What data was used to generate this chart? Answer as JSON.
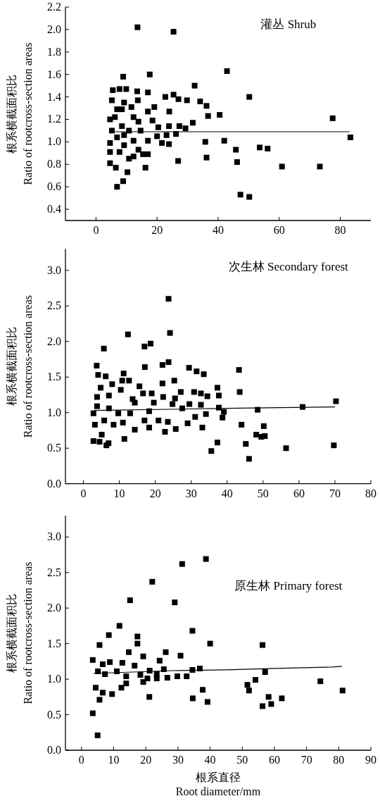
{
  "chart_data": [
    {
      "type": "scatter",
      "title": "灌丛 Shrub",
      "ylabel": "根系横截面积比 Ratio of rootcross-section areas",
      "xlim": [
        -10,
        90
      ],
      "ylim": [
        0.3,
        2.2
      ],
      "xticks": [
        0,
        20,
        40,
        60,
        80
      ],
      "yticks": [
        0.4,
        0.6,
        0.8,
        {
          "value": 1,
          "label": "1.0"
        },
        1.2,
        1.4,
        1.6,
        1.8,
        {
          "value": 2,
          "label": "2.0"
        },
        2.2
      ],
      "marker": "square",
      "series": [
        {
          "color": "#000000",
          "x": [
            13.6,
            25.4,
            8.9,
            17.6,
            42.9,
            32.3,
            50.2,
            77.5,
            83.3,
            5.5,
            7.7,
            9.9,
            13.5,
            17,
            22.7,
            25.4,
            27,
            29.8,
            34.1,
            36.2,
            36.7,
            40.5,
            31.7,
            24,
            19.1,
            13.7,
            11.6,
            5.2,
            4.6,
            6.2,
            8.5,
            17,
            18.5,
            20.4,
            23.9,
            27.3,
            29.3,
            26.2,
            23.1,
            20,
            17,
            21.6,
            23.9,
            35.8,
            42,
            45.8,
            53.6,
            56.2,
            36.2,
            46.2,
            60.9,
            73.3,
            47.3,
            50.2,
            26.9,
            16.2,
            10.3,
            8.9,
            6.9,
            4.6,
            6.5,
            4.6,
            4.6,
            5.2,
            6.9,
            9.2,
            10.8,
            12.3,
            15.4,
            17,
            13.9,
            12.3,
            10.8,
            8.5,
            9.2,
            6.9,
            12.3,
            14.6,
            13.9,
            7.7,
            9.2
          ],
          "values": [
            2.02,
            1.98,
            1.58,
            1.6,
            1.63,
            1.5,
            1.4,
            1.21,
            1.04,
            1.46,
            1.47,
            1.47,
            1.45,
            1.44,
            1.4,
            1.42,
            1.38,
            1.37,
            1.36,
            1.32,
            1.23,
            1.24,
            1.17,
            1.27,
            1.31,
            1.37,
            1.31,
            1.37,
            1.2,
            1.22,
            1.29,
            1.27,
            1.19,
            1.13,
            1.14,
            1.14,
            1.12,
            1.07,
            1.06,
            1.05,
            1.01,
            0.99,
            0.98,
            1.0,
            1.01,
            0.93,
            0.95,
            0.94,
            0.86,
            0.82,
            0.78,
            0.78,
            0.53,
            0.51,
            0.83,
            0.77,
            0.73,
            0.65,
            0.6,
            0.81,
            0.77,
            0.91,
            0.99,
            1.1,
            1.04,
            0.97,
            0.85,
            0.87,
            0.89,
            0.89,
            0.93,
            1.01,
            1.1,
            1.14,
            1.35,
            1.29,
            1.22,
            1.1,
            1.18,
            0.91,
            1.06
          ]
        },
        {
          "type": "line",
          "marker": "none",
          "color": "#000000",
          "x": [
            5,
            83
          ],
          "values": [
            1.09,
            1.09
          ]
        }
      ]
    },
    {
      "type": "scatter",
      "title": "次生林 Secondary forest",
      "ylabel": "根系横截面积比 Ratio of rootcross-section areas",
      "xlim": [
        -5,
        80
      ],
      "ylim": [
        0,
        3.3
      ],
      "xticks": [
        0,
        10,
        20,
        30,
        40,
        50,
        60,
        70,
        80
      ],
      "yticks": [
        {
          "value": 0,
          "label": "0.0"
        },
        0.5,
        {
          "value": 1,
          "label": "1.0"
        },
        1.5,
        {
          "value": 2,
          "label": "2.0"
        },
        2.5,
        {
          "value": 3,
          "label": "3.0"
        }
      ],
      "marker": "square",
      "series": [
        {
          "color": "#000000",
          "x": [
            23.7,
            24.1,
            12.4,
            17.0,
            18.7,
            5.7,
            3.7,
            17.1,
            22.0,
            23.7,
            29.4,
            31.5,
            33.5,
            43.3,
            4.1,
            6.2,
            11.2,
            12.7,
            10.8,
            8,
            22,
            25.3,
            15.6,
            4.8,
            10.4,
            37.3,
            43.5,
            30.8,
            32.7,
            34.5,
            37.7,
            27.1,
            25.5,
            22.2,
            19,
            16.6,
            3.8,
            7.1,
            13.7,
            14.3,
            19.6,
            29.5,
            32.7,
            37.7,
            27.5,
            24.8,
            48.5,
            61,
            70.3,
            39.1,
            34.1,
            31.1,
            38.7,
            29,
            33.1,
            25.7,
            22.7,
            20.9,
            23.5,
            18.3,
            14.3,
            11.4,
            7,
            6.4,
            2.8,
            4.5,
            5.1,
            3.2,
            2.8,
            3.8,
            5.8,
            8.4,
            9.7,
            7.1,
            11.0,
            13,
            17,
            18.3,
            44,
            50.2,
            48.1,
            49.5,
            50.5,
            37.3,
            45.2,
            35.6,
            56.4,
            69.7,
            46.1
          ],
          "values": [
            2.6,
            2.12,
            2.1,
            1.93,
            1.97,
            1.9,
            1.66,
            1.64,
            1.67,
            1.71,
            1.63,
            1.58,
            1.54,
            1.6,
            1.53,
            1.51,
            1.55,
            1.45,
            1.45,
            1.4,
            1.41,
            1.45,
            1.37,
            1.35,
            1.32,
            1.35,
            1.29,
            1.29,
            1.27,
            1.23,
            1.24,
            1.29,
            1.2,
            1.22,
            1.27,
            1.27,
            1.22,
            1.24,
            1.19,
            1.14,
            1.14,
            1.12,
            1.11,
            1.07,
            1.06,
            1.12,
            1.04,
            1.08,
            1.16,
            1.01,
            0.98,
            0.94,
            0.93,
            0.85,
            0.79,
            0.77,
            0.73,
            0.89,
            0.87,
            0.79,
            0.76,
            0.63,
            0.57,
            0.54,
            0.6,
            0.59,
            0.69,
            0.83,
            0.99,
            1.09,
            0.89,
            0.83,
            0.99,
            1.06,
            0.86,
            0.99,
            0.89,
            1.02,
            0.83,
            0.81,
            0.69,
            0.66,
            0.67,
            0.58,
            0.56,
            0.46,
            0.5,
            0.54,
            0.35
          ]
        },
        {
          "type": "line",
          "marker": "none",
          "color": "#000000",
          "x": [
            3,
            40,
            70
          ],
          "values": [
            1.03,
            1.06,
            1.08
          ]
        }
      ]
    },
    {
      "type": "scatter",
      "title": "原生林 Primary forest",
      "ylabel": "根系横截面积比 Ratio of rootcross-section areas",
      "xlabel": "根系直径 Root diameter/mm",
      "xlim": [
        -5,
        90
      ],
      "ylim": [
        0,
        3.3
      ],
      "xticks": [
        0,
        10,
        20,
        30,
        40,
        50,
        60,
        70,
        80,
        90
      ],
      "yticks": [
        {
          "value": 0,
          "label": "0.0"
        },
        0.5,
        {
          "value": 1,
          "label": "1.0"
        },
        1.5,
        {
          "value": 2,
          "label": "2.0"
        },
        2.5,
        {
          "value": 3,
          "label": "3.0"
        }
      ],
      "marker": "square",
      "series": [
        {
          "color": "#000000",
          "x": [
            38.7,
            31.3,
            22,
            15.1,
            29,
            11.8,
            8.5,
            17.4,
            17.4,
            5.6,
            34.5,
            40,
            56.3,
            14.7,
            26.2,
            30.8,
            19.2,
            3.5,
            24.3,
            16.5,
            36.8,
            34.5,
            57.1,
            12.7,
            8.8,
            6.6,
            5.1,
            7.3,
            11,
            13.9,
            18.3,
            21.2,
            23.4,
            25.6,
            26.7,
            29.8,
            32.7,
            23.4,
            20.5,
            19.2,
            13.9,
            4.4,
            6.6,
            9.5,
            12.4,
            5.6,
            21.1,
            37.7,
            34.6,
            39.2,
            54.1,
            51.6,
            52.1,
            74.3,
            81.2,
            58.2,
            62.3,
            56.3,
            59,
            3.5,
            5
          ],
          "values": [
            2.69,
            2.62,
            2.37,
            2.11,
            2.08,
            1.75,
            1.62,
            1.6,
            1.5,
            1.48,
            1.68,
            1.5,
            1.48,
            1.38,
            1.38,
            1.33,
            1.32,
            1.27,
            1.26,
            1.19,
            1.15,
            1.13,
            1.1,
            1.23,
            1.24,
            1.21,
            1.11,
            1.07,
            1.11,
            1.04,
            1.06,
            1.12,
            1.07,
            1.14,
            1.02,
            1.04,
            1.04,
            1.01,
            1.01,
            0.96,
            0.94,
            0.88,
            0.81,
            0.79,
            0.88,
            0.71,
            0.75,
            0.85,
            0.73,
            0.68,
            0.99,
            0.92,
            0.84,
            0.97,
            0.84,
            0.75,
            0.73,
            0.62,
            0.65,
            0.52,
            0.21
          ]
        },
        {
          "type": "line",
          "marker": "none",
          "color": "#000000",
          "x": [
            3.7,
            28,
            45,
            60,
            78,
            81
          ],
          "values": [
            1.08,
            1.12,
            1.13,
            1.15,
            1.17,
            1.18
          ]
        }
      ]
    }
  ]
}
